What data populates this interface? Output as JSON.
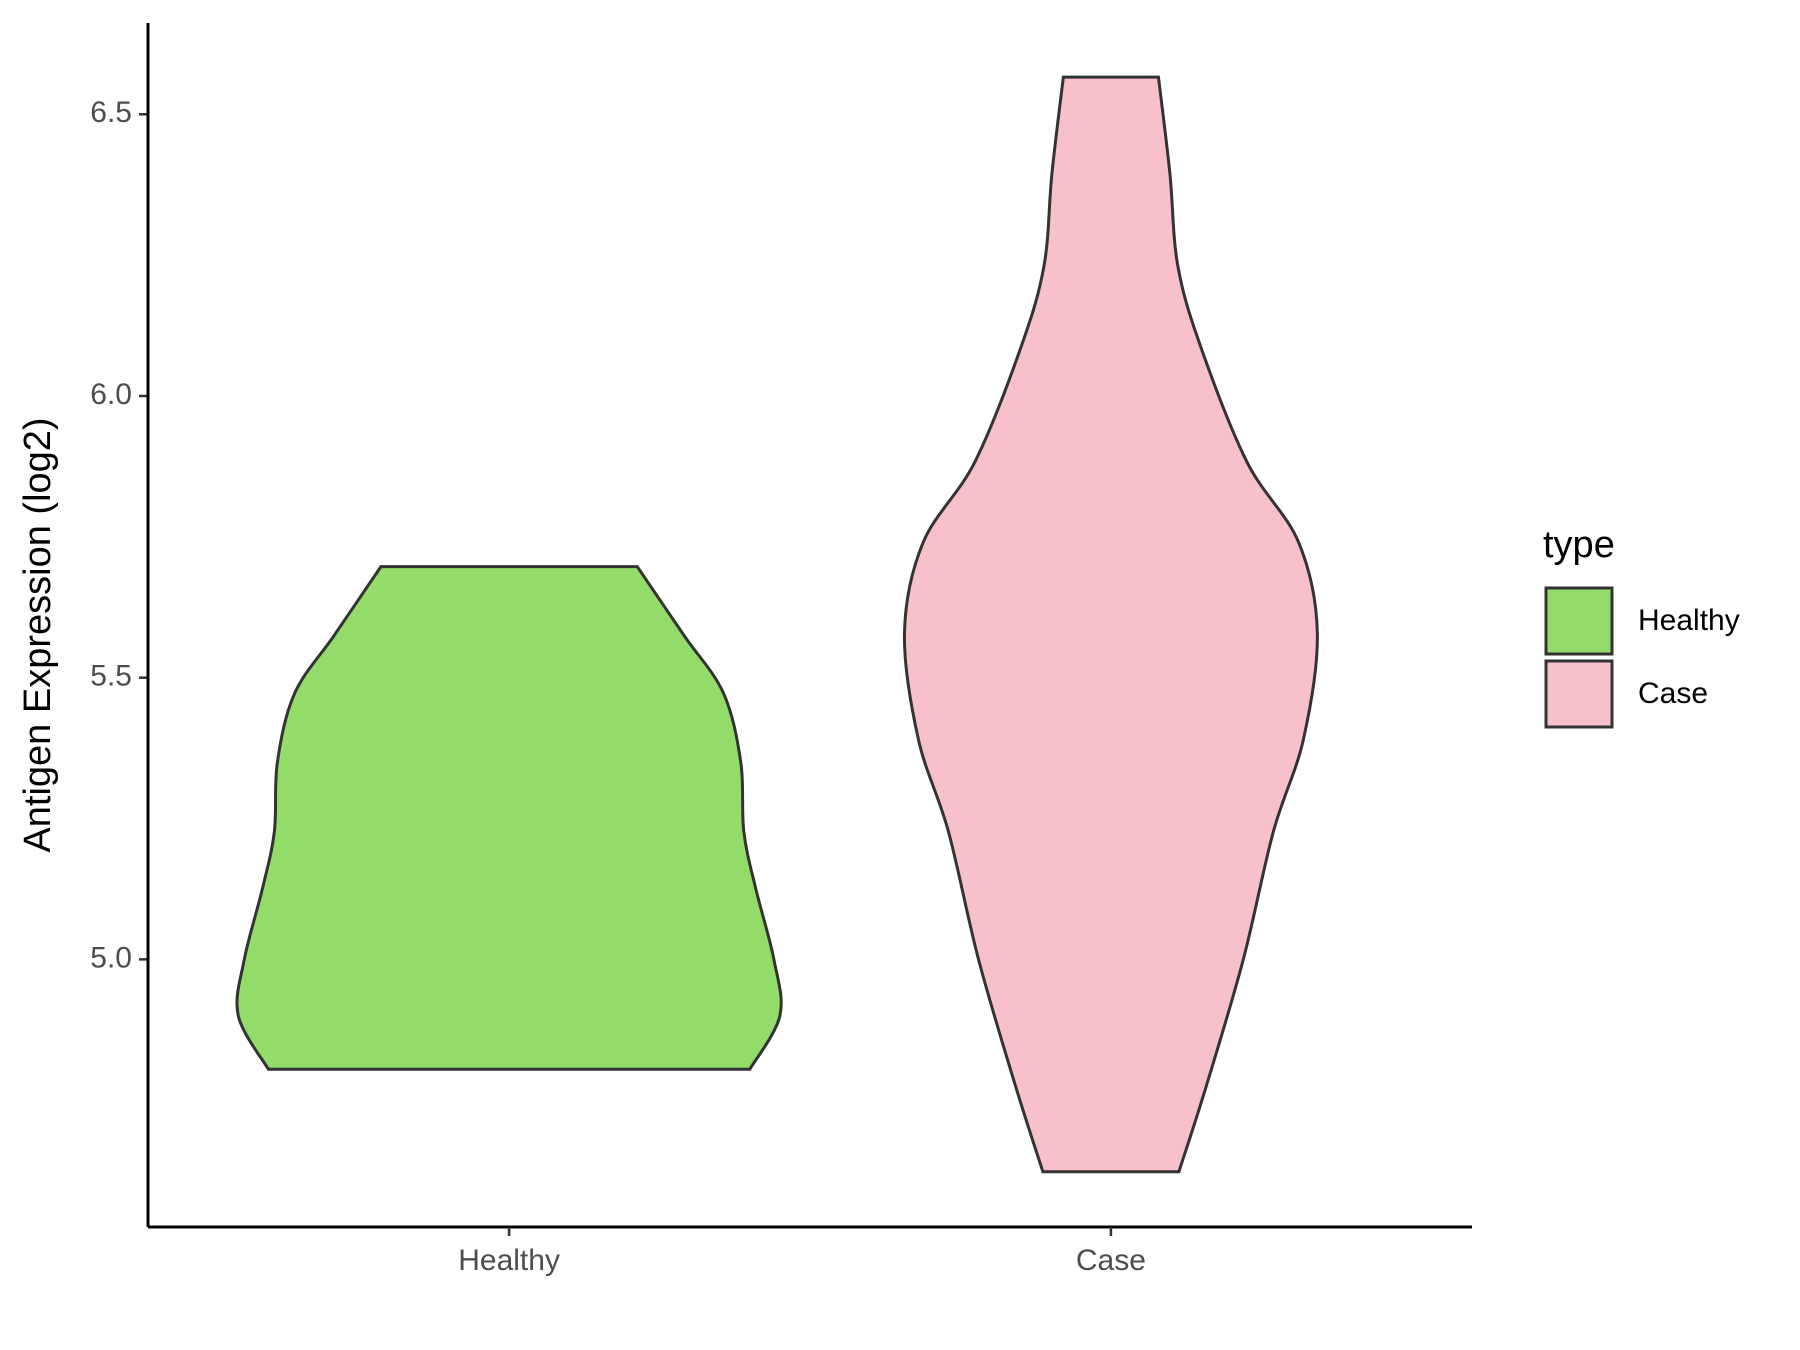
{
  "chart_data": {
    "type": "violin",
    "y_label": "Antigen Expression (log2)",
    "categories": [
      "Healthy",
      "Case"
    ],
    "legend_title": "type",
    "series": [
      {
        "name": "Healthy",
        "color": "#93dc6a",
        "y": [
          4.805,
          4.9,
          5.0,
          5.125,
          5.227,
          5.35,
          5.473,
          5.576,
          5.697
        ],
        "width": [
          0.4,
          0.45,
          0.44,
          0.41,
          0.39,
          0.385,
          0.356,
          0.29,
          0.213
        ]
      },
      {
        "name": "Case",
        "color": "#f7c0cb",
        "y": [
          4.623,
          4.777,
          5.0,
          5.227,
          5.391,
          5.58,
          5.74,
          5.883,
          6.088,
          6.232,
          6.395,
          6.566
        ],
        "width": [
          0.113,
          0.159,
          0.22,
          0.27,
          0.32,
          0.343,
          0.312,
          0.226,
          0.149,
          0.111,
          0.098,
          0.079
        ]
      }
    ],
    "ylim": [
      4.525,
      6.662
    ],
    "yticks": [
      {
        "value": 5,
        "label": "5.0"
      },
      5.5,
      {
        "value": 6,
        "label": "6.0"
      },
      6.5
    ]
  }
}
